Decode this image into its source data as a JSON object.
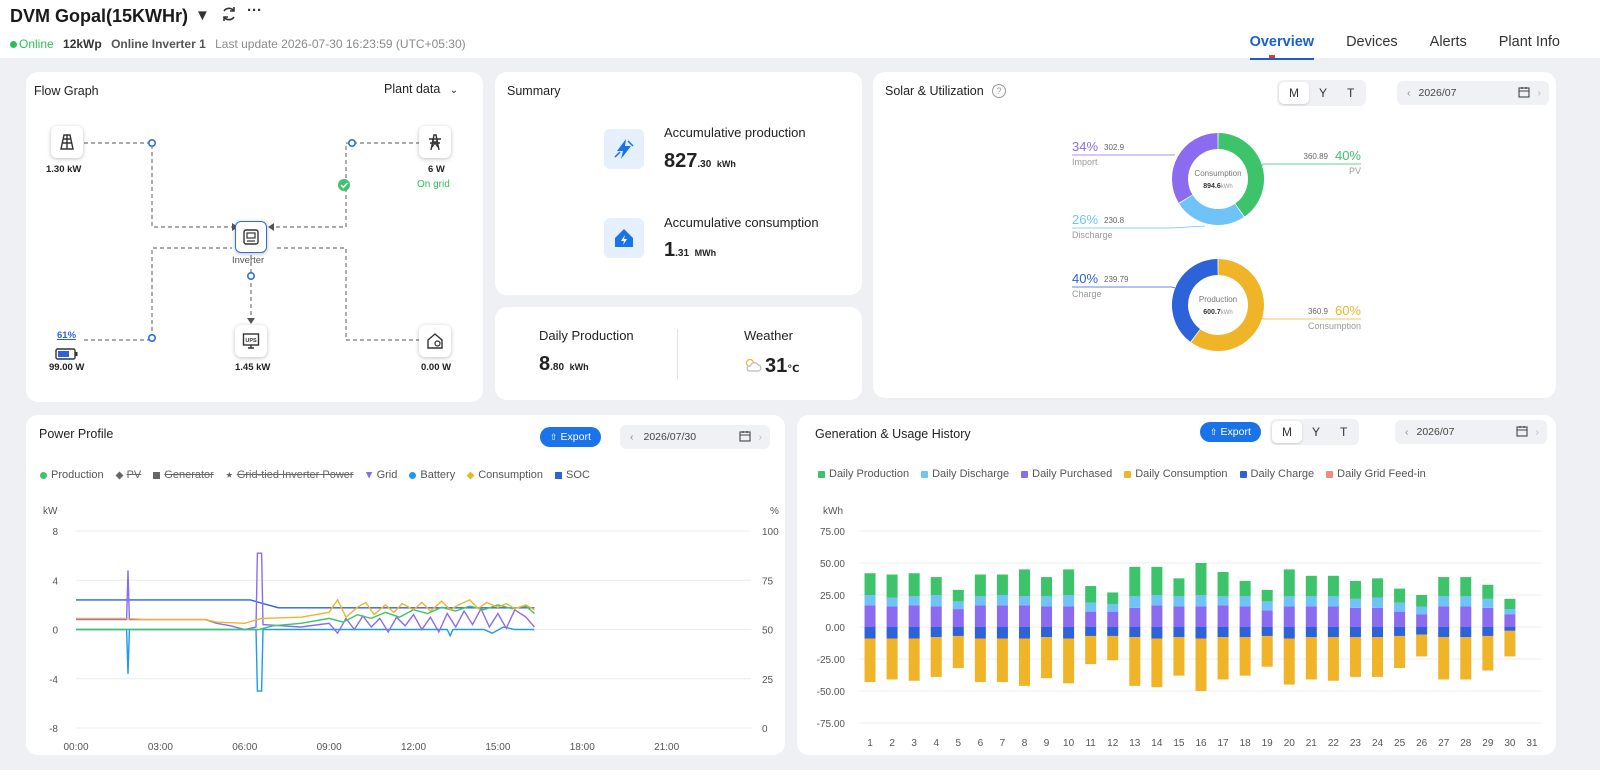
{
  "header": {
    "plant_name": "DVM Gopal(15KWHr)",
    "status": "Online",
    "capacity": "12kWp",
    "inverter_status": "Online Inverter 1",
    "last_update": "Last update 2026-07-30 16:23:59 (UTC+05:30)",
    "nav": [
      "Overview",
      "Devices",
      "Alerts",
      "Plant Info"
    ],
    "active_nav": "Overview"
  },
  "flow_graph": {
    "title": "Flow Graph",
    "dropdown": "Plant data",
    "solar": {
      "value": "1.30 kW",
      "icon": "solar-panel-icon"
    },
    "grid": {
      "value": "6 W",
      "status": "On grid",
      "icon": "grid-tower-icon"
    },
    "inverter": {
      "label": "Inverter",
      "icon": "inverter-icon"
    },
    "battery": {
      "soc": "61%",
      "value": "99.00 W",
      "icon": "battery-icon"
    },
    "ups": {
      "value": "1.45 kW",
      "icon": "ups-icon"
    },
    "home": {
      "value": "0.00 W",
      "icon": "home-icon"
    }
  },
  "summary": {
    "title": "Summary",
    "production": {
      "label": "Accumulative production",
      "int": "827",
      "dec": ".30",
      "unit": "kWh"
    },
    "consumption": {
      "label": "Accumulative consumption",
      "int": "1",
      "dec": ".31",
      "unit": "MWh"
    }
  },
  "daily": {
    "label": "Daily Production",
    "int": "8",
    "dec": ".80",
    "unit": "kWh",
    "weather_label": "Weather",
    "temp": "31",
    "temp_unit": "℃"
  },
  "solar_util": {
    "title": "Solar & Utilization",
    "periods": [
      "M",
      "Y",
      "T"
    ],
    "active_period": "M",
    "date": "2026/07",
    "consumption_donut": {
      "center_label": "Consumption",
      "center_value": "894.6",
      "center_unit": "kWh",
      "items": [
        {
          "name": "Import",
          "pct": "34%",
          "value": "302.9",
          "color": "#8b6cf0"
        },
        {
          "name": "PV",
          "pct": "40%",
          "value": "360.89",
          "color": "#3dc46b"
        },
        {
          "name": "Discharge",
          "pct": "26%",
          "value": "230.8",
          "color": "#6fc3f7"
        }
      ]
    },
    "production_donut": {
      "center_label": "Production",
      "center_value": "600.7",
      "center_unit": "kWh",
      "items": [
        {
          "name": "Charge",
          "pct": "40%",
          "value": "239.79",
          "color": "#2e62d9"
        },
        {
          "name": "Consumption",
          "pct": "60%",
          "value": "360.9",
          "color": "#f0b429"
        }
      ]
    }
  },
  "power_profile": {
    "title": "Power Profile",
    "export": "Export",
    "date": "2026/07/30",
    "legend": [
      {
        "name": "Production",
        "color": "#3dc46b",
        "shape": "dot",
        "disabled": false
      },
      {
        "name": "PV",
        "color": "#666666",
        "shape": "diamond",
        "disabled": true
      },
      {
        "name": "Generator",
        "color": "#666666",
        "shape": "square",
        "disabled": true
      },
      {
        "name": "Grid-tied Inverter Power",
        "color": "#666666",
        "shape": "star",
        "disabled": true
      },
      {
        "name": "Grid",
        "color": "#8b6cf0",
        "shape": "triangle",
        "disabled": false
      },
      {
        "name": "Battery",
        "color": "#1b9be8",
        "shape": "dot",
        "disabled": false
      },
      {
        "name": "Consumption",
        "color": "#f0b429",
        "shape": "diamond",
        "disabled": false
      },
      {
        "name": "SOC",
        "color": "#2e62d9",
        "shape": "square",
        "disabled": false
      }
    ],
    "y_unit_left": "kW",
    "y_unit_right": "%"
  },
  "gen_history": {
    "title": "Generation & Usage History",
    "export": "Export",
    "periods": [
      "M",
      "Y",
      "T"
    ],
    "active_period": "M",
    "date": "2026/07",
    "legend": [
      {
        "name": "Daily Production",
        "color": "#3dc46b"
      },
      {
        "name": "Daily Discharge",
        "color": "#6fc3f7"
      },
      {
        "name": "Daily Purchased",
        "color": "#8b6cf0"
      },
      {
        "name": "Daily Consumption",
        "color": "#f0b429"
      },
      {
        "name": "Daily Charge",
        "color": "#2e62d9"
      },
      {
        "name": "Daily Grid Feed-in",
        "color": "#f08c80"
      }
    ],
    "y_unit": "kWh"
  },
  "chart_data": [
    {
      "type": "line",
      "title": "Power Profile",
      "x_ticks": [
        "00:00",
        "03:00",
        "06:00",
        "09:00",
        "12:00",
        "15:00",
        "18:00",
        "21:00"
      ],
      "y_left_ticks": [
        8,
        4,
        0,
        -4,
        -8
      ],
      "y_right_ticks": [
        100,
        75,
        50,
        25,
        0
      ],
      "ylim_left": [
        -8,
        8
      ],
      "ylim_right": [
        0,
        100
      ],
      "x_range_hours": [
        0,
        24
      ],
      "ylabel_left": "kW",
      "ylabel_right": "%",
      "series": [
        {
          "name": "SOC",
          "axis": "right",
          "color": "#2e62d9",
          "points": [
            [
              0.0,
              65
            ],
            [
              6.2,
              65
            ],
            [
              6.7,
              63
            ],
            [
              7.2,
              61
            ],
            [
              16.3,
              61
            ]
          ]
        },
        {
          "name": "Battery",
          "axis": "left",
          "color": "#1b9be8",
          "points": [
            [
              0.0,
              0.0
            ],
            [
              1.8,
              0.0
            ],
            [
              1.85,
              -3.6
            ],
            [
              1.9,
              0.0
            ],
            [
              6.4,
              0.0
            ],
            [
              6.45,
              -5.0
            ],
            [
              6.6,
              -5.0
            ],
            [
              6.65,
              0.0
            ],
            [
              12.0,
              0.0
            ],
            [
              13.2,
              0.0
            ],
            [
              13.3,
              -0.5
            ],
            [
              13.4,
              0.0
            ],
            [
              14.5,
              0.0
            ],
            [
              14.8,
              -0.3
            ],
            [
              15.2,
              0.2
            ],
            [
              15.6,
              0.0
            ],
            [
              16.3,
              0.0
            ]
          ]
        },
        {
          "name": "Grid",
          "axis": "left",
          "color": "#8b6cf0",
          "points": [
            [
              0.0,
              0.8
            ],
            [
              1.8,
              0.8
            ],
            [
              1.85,
              4.8
            ],
            [
              1.9,
              0.8
            ],
            [
              4.6,
              0.8
            ],
            [
              5.0,
              0.5
            ],
            [
              5.5,
              0.3
            ],
            [
              6.0,
              0.0
            ],
            [
              6.4,
              0.2
            ],
            [
              6.45,
              6.2
            ],
            [
              6.6,
              6.2
            ],
            [
              6.65,
              0.4
            ],
            [
              8.0,
              0.2
            ],
            [
              9.0,
              0.5
            ],
            [
              9.3,
              -0.3
            ],
            [
              9.6,
              0.9
            ],
            [
              9.9,
              0.0
            ],
            [
              10.2,
              1.1
            ],
            [
              10.5,
              0.2
            ],
            [
              10.8,
              0.9
            ],
            [
              11.1,
              -0.2
            ],
            [
              11.4,
              1.0
            ],
            [
              11.7,
              0.3
            ],
            [
              12.0,
              1.2
            ],
            [
              12.3,
              0.0
            ],
            [
              12.6,
              1.0
            ],
            [
              12.9,
              -0.2
            ],
            [
              13.2,
              1.3
            ],
            [
              13.5,
              0.2
            ],
            [
              13.8,
              1.5
            ],
            [
              14.1,
              0.4
            ],
            [
              14.4,
              1.7
            ],
            [
              14.7,
              0.2
            ],
            [
              15.0,
              1.3
            ],
            [
              15.3,
              0.1
            ],
            [
              15.6,
              1.6
            ],
            [
              16.0,
              1.0
            ],
            [
              16.3,
              0.2
            ]
          ]
        },
        {
          "name": "Production",
          "axis": "left",
          "color": "#3dc46b",
          "points": [
            [
              0.0,
              0.0
            ],
            [
              6.5,
              0.0
            ],
            [
              7.0,
              0.3
            ],
            [
              8.0,
              0.5
            ],
            [
              9.0,
              0.9
            ],
            [
              9.5,
              0.6
            ],
            [
              10.0,
              1.2
            ],
            [
              10.5,
              0.9
            ],
            [
              11.0,
              1.4
            ],
            [
              11.5,
              1.0
            ],
            [
              12.0,
              1.6
            ],
            [
              12.5,
              1.3
            ],
            [
              13.0,
              1.8
            ],
            [
              13.5,
              1.5
            ],
            [
              14.0,
              1.9
            ],
            [
              14.5,
              1.6
            ],
            [
              15.0,
              2.0
            ],
            [
              15.5,
              1.7
            ],
            [
              16.0,
              1.9
            ],
            [
              16.3,
              1.3
            ]
          ]
        },
        {
          "name": "Consumption",
          "axis": "left",
          "color": "#f0b429",
          "points": [
            [
              0.0,
              0.9
            ],
            [
              1.8,
              0.9
            ],
            [
              2.5,
              0.8
            ],
            [
              4.6,
              0.8
            ],
            [
              5.0,
              0.6
            ],
            [
              6.0,
              0.5
            ],
            [
              6.6,
              0.9
            ],
            [
              8.0,
              1.0
            ],
            [
              9.0,
              1.4
            ],
            [
              9.3,
              2.4
            ],
            [
              9.6,
              1.0
            ],
            [
              10.0,
              1.8
            ],
            [
              10.3,
              2.2
            ],
            [
              10.6,
              1.2
            ],
            [
              11.0,
              2.0
            ],
            [
              11.3,
              1.4
            ],
            [
              11.6,
              2.1
            ],
            [
              12.0,
              1.6
            ],
            [
              12.3,
              2.2
            ],
            [
              12.6,
              1.5
            ],
            [
              13.0,
              2.3
            ],
            [
              13.3,
              1.6
            ],
            [
              13.6,
              2.0
            ],
            [
              14.0,
              2.4
            ],
            [
              14.3,
              1.7
            ],
            [
              14.6,
              2.2
            ],
            [
              15.0,
              1.8
            ],
            [
              15.3,
              2.1
            ],
            [
              15.6,
              1.7
            ],
            [
              16.0,
              2.0
            ],
            [
              16.3,
              1.6
            ]
          ]
        }
      ]
    },
    {
      "type": "bar",
      "title": "Generation & Usage History",
      "ylabel": "kWh",
      "ylim": [
        -75,
        75
      ],
      "y_ticks": [
        "75.00",
        "50.00",
        "25.00",
        "0.00",
        "-25.00",
        "-50.00",
        "-75.00"
      ],
      "categories": [
        "1",
        "2",
        "3",
        "4",
        "5",
        "6",
        "7",
        "8",
        "9",
        "10",
        "11",
        "12",
        "13",
        "14",
        "15",
        "16",
        "17",
        "18",
        "19",
        "20",
        "21",
        "22",
        "23",
        "24",
        "25",
        "26",
        "27",
        "28",
        "29",
        "30",
        "31"
      ],
      "series": [
        {
          "name": "Daily Production",
          "color": "#3dc46b",
          "values": [
            17,
            18,
            18,
            14,
            9,
            17,
            16,
            21,
            15,
            20,
            13,
            9,
            23,
            22,
            14,
            25,
            19,
            12,
            9,
            21,
            16,
            16,
            14,
            15,
            11,
            9,
            15,
            15,
            11,
            8,
            0
          ]
        },
        {
          "name": "Daily Discharge",
          "color": "#6fc3f7",
          "values": [
            8,
            7,
            7,
            9,
            6,
            7,
            8,
            7,
            8,
            9,
            7,
            6,
            9,
            8,
            8,
            9,
            7,
            8,
            7,
            8,
            8,
            8,
            7,
            8,
            7,
            6,
            8,
            8,
            7,
            4,
            0
          ]
        },
        {
          "name": "Daily Purchased",
          "color": "#8b6cf0",
          "values": [
            17,
            16,
            17,
            16,
            14,
            17,
            17,
            17,
            16,
            16,
            12,
            12,
            15,
            17,
            16,
            16,
            17,
            16,
            13,
            16,
            16,
            16,
            15,
            15,
            12,
            10,
            16,
            16,
            15,
            10,
            0
          ]
        },
        {
          "name": "Daily Charge",
          "color": "#2e62d9",
          "values": [
            -9,
            -9,
            -9,
            -8,
            -7,
            -9,
            -9,
            -9,
            -8,
            -9,
            -7,
            -7,
            -8,
            -9,
            -8,
            -9,
            -8,
            -8,
            -7,
            -9,
            -8,
            -8,
            -8,
            -8,
            -7,
            -6,
            -8,
            -8,
            -7,
            -3,
            0
          ]
        },
        {
          "name": "Daily Consumption",
          "color": "#f0b429",
          "values": [
            -34,
            -32,
            -33,
            -31,
            -25,
            -34,
            -34,
            -37,
            -32,
            -35,
            -22,
            -19,
            -38,
            -38,
            -30,
            -41,
            -33,
            -30,
            -24,
            -36,
            -33,
            -34,
            -31,
            -31,
            -25,
            -17,
            -33,
            -33,
            -27,
            -20,
            0
          ]
        },
        {
          "name": "Daily Grid Feed-in",
          "color": "#f08c80",
          "values": [
            0,
            0,
            0,
            0,
            0,
            0,
            0,
            0,
            0,
            0,
            0,
            0,
            0,
            0,
            0,
            0,
            0,
            0,
            0,
            0,
            0,
            0,
            0,
            0,
            0,
            0,
            0,
            0,
            0,
            0,
            0
          ]
        }
      ]
    }
  ]
}
